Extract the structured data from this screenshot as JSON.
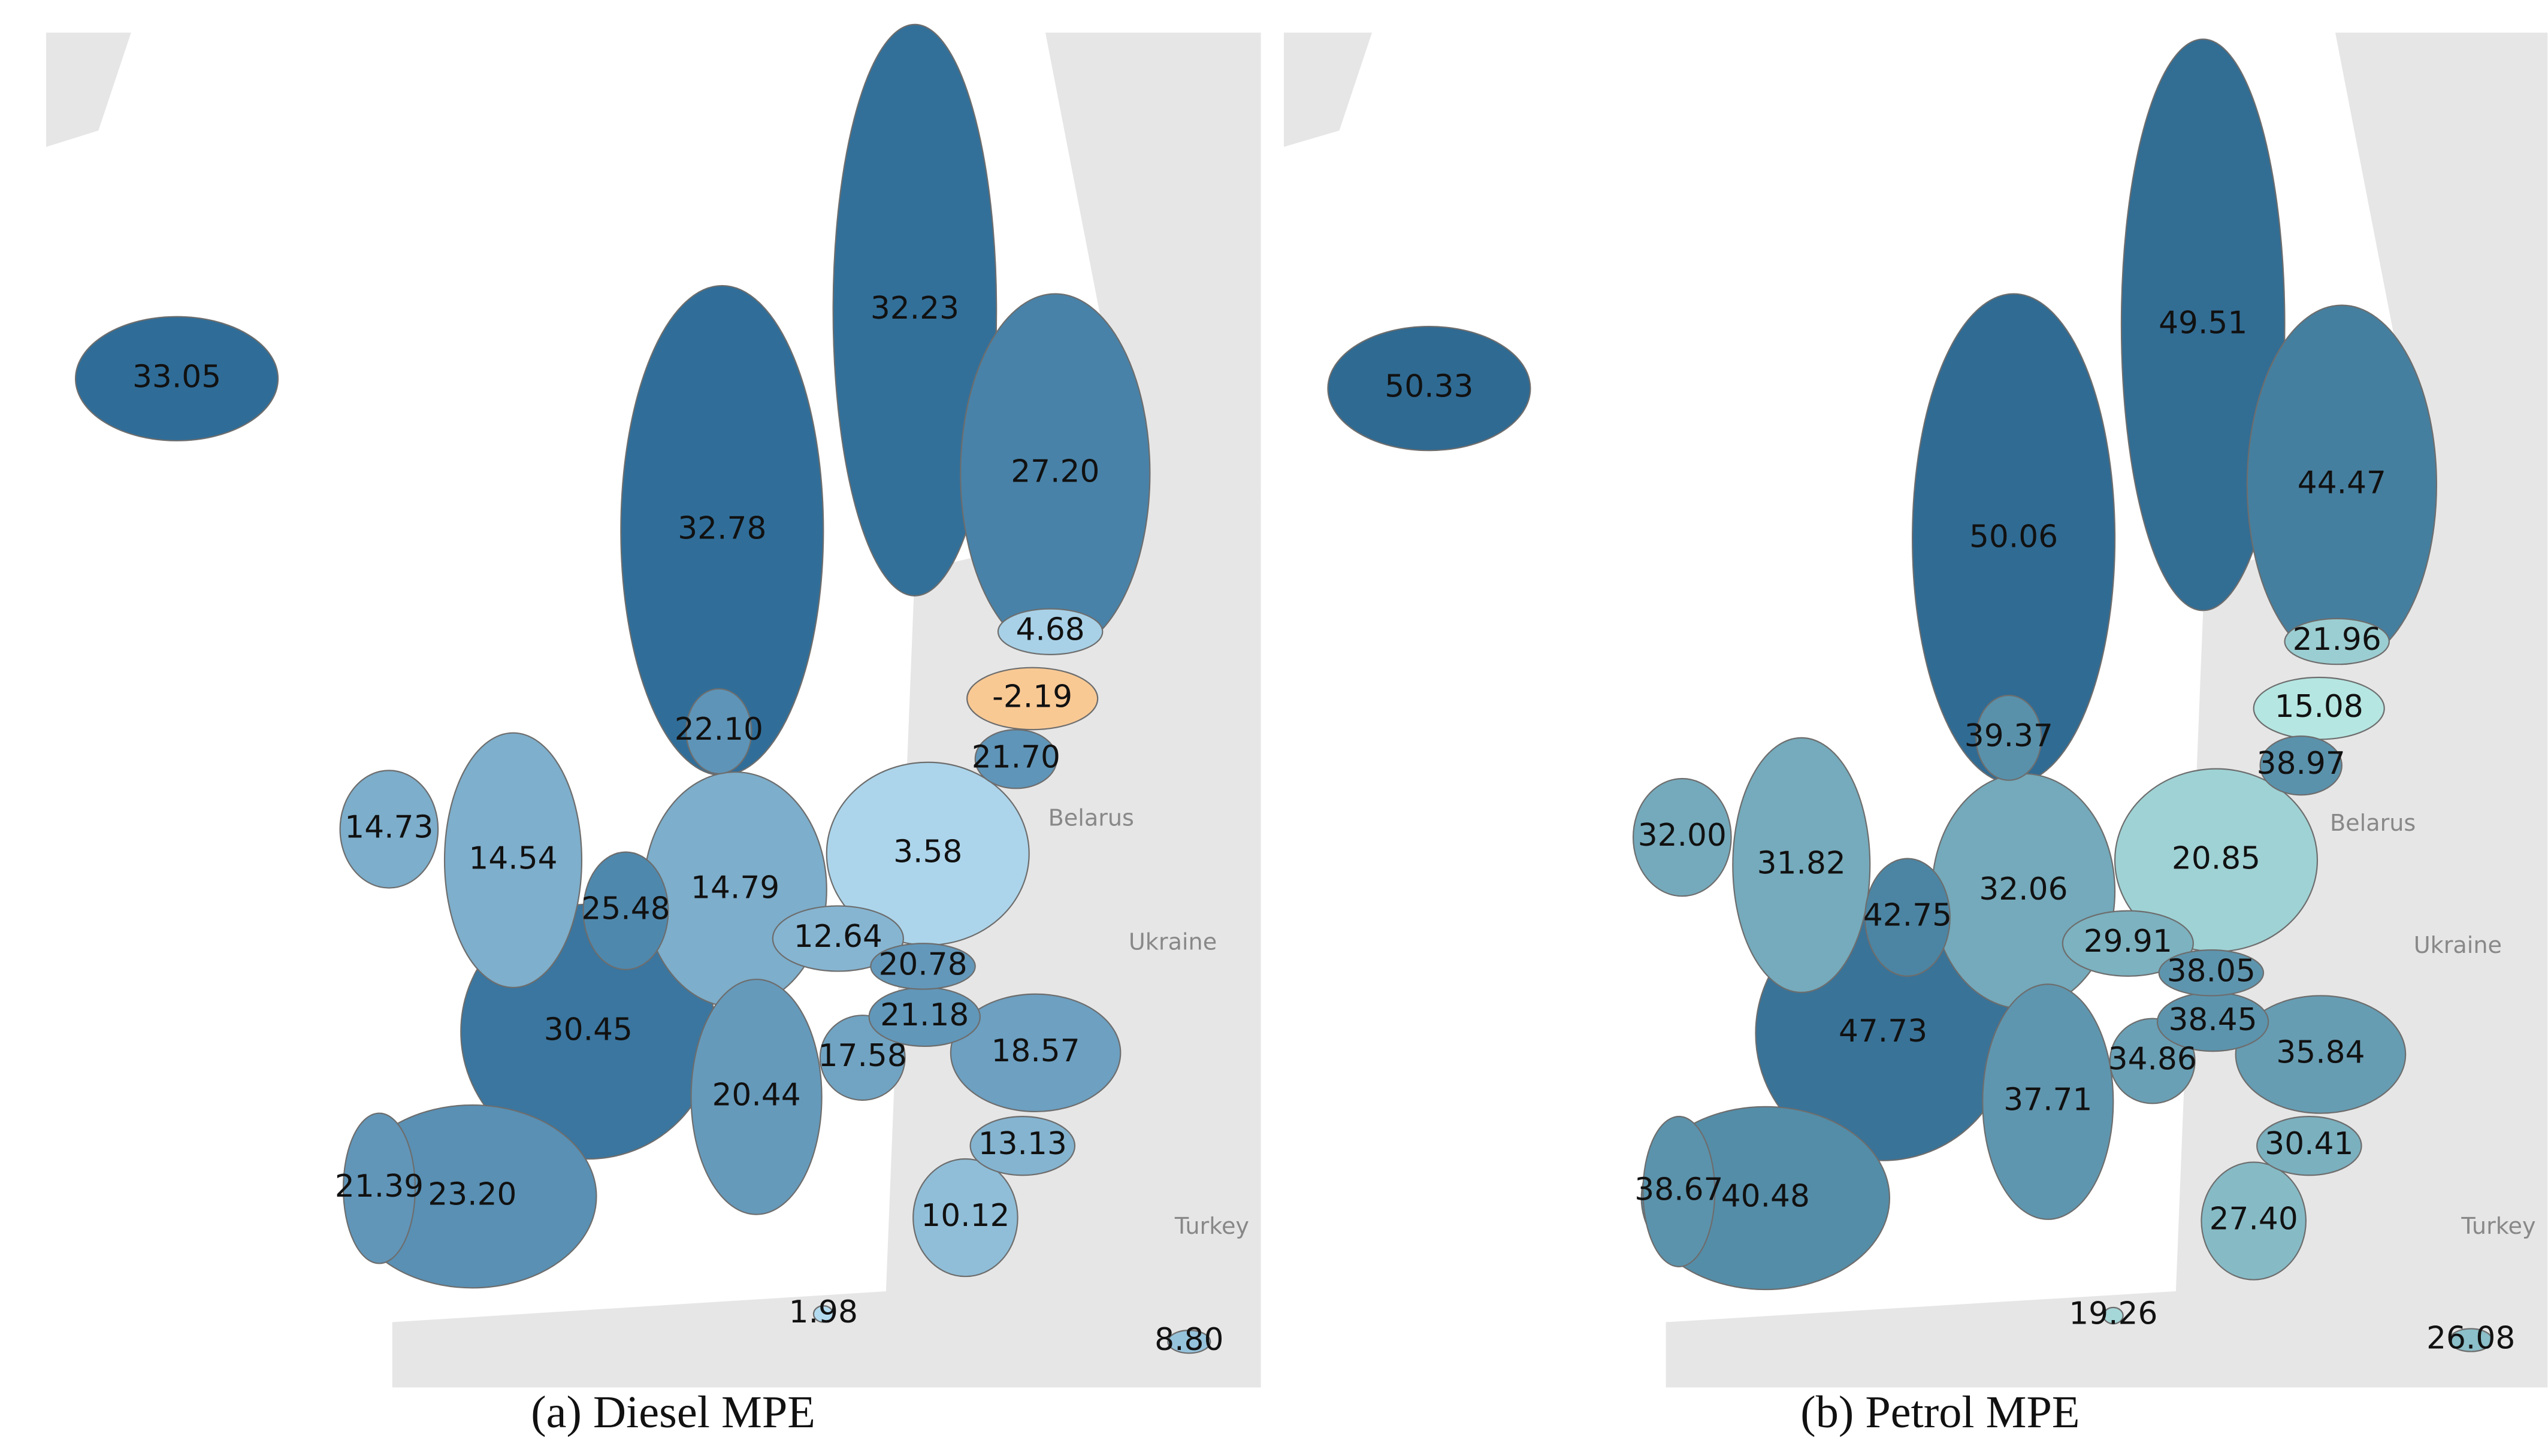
{
  "maps": [
    {
      "caption": "(a) Diesel MPE",
      "color_low": "#b3dbef",
      "color_high": "#2f6d98",
      "color_negative": "#f9c994",
      "values": [
        33.05,
        32.23,
        27.2,
        32.78,
        4.68,
        -2.19,
        22.1,
        21.7,
        14.73,
        14.54,
        3.58,
        14.79,
        25.48,
        12.64,
        20.78,
        21.18,
        30.45,
        18.57,
        17.58,
        20.44,
        13.13,
        21.39,
        23.2,
        10.12,
        1.98,
        8.8
      ],
      "value_labels": [
        "33.05",
        "32.23",
        "27.20",
        "32.78",
        "4.68",
        "-2.19",
        "22.10",
        "21.70",
        "14.73",
        "14.54",
        "3.58",
        "14.79",
        "25.48",
        "12.64",
        "20.78",
        "21.18",
        "30.45",
        "18.57",
        "17.58",
        "20.44",
        "13.13",
        "21.39",
        "23.20",
        "10.12",
        "1.98",
        "8.80"
      ],
      "place_labels": [
        "Belarus",
        "Ukraine",
        "Turkey"
      ]
    },
    {
      "caption": "(b) Petrol MPE",
      "color_low": "#b5e6e2",
      "color_high": "#2f6a92",
      "values": [
        50.33,
        49.51,
        44.47,
        50.06,
        21.96,
        15.08,
        39.37,
        38.97,
        32.0,
        31.82,
        20.85,
        32.06,
        42.75,
        29.91,
        38.05,
        38.45,
        47.73,
        35.84,
        34.86,
        37.71,
        30.41,
        38.67,
        40.48,
        27.4,
        19.26,
        26.08
      ],
      "value_labels": [
        "50.33",
        "49.51",
        "44.47",
        "50.06",
        "21.96",
        "15.08",
        "39.37",
        "38.97",
        "32.00",
        "31.82",
        "20.85",
        "32.06",
        "42.75",
        "29.91",
        "38.05",
        "38.45",
        "47.73",
        "35.84",
        "34.86",
        "37.71",
        "30.41",
        "38.67",
        "40.48",
        "27.40",
        "19.26",
        "26.08"
      ],
      "place_labels": [
        "Belarus",
        "Ukraine",
        "Turkey"
      ]
    }
  ]
}
